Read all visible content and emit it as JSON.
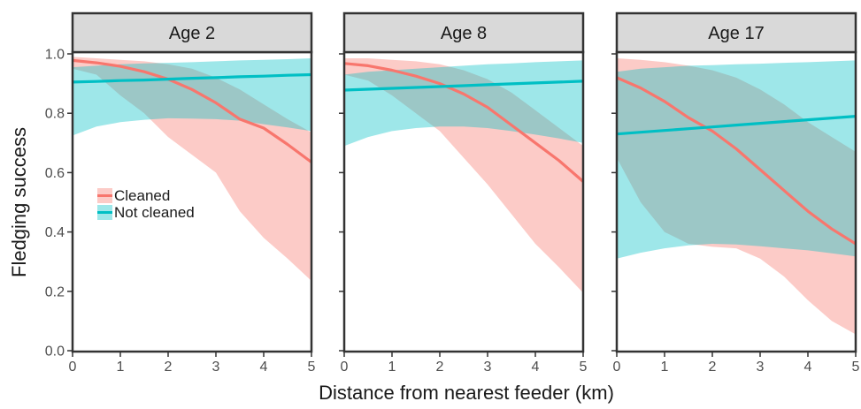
{
  "chart_data": {
    "type": "line",
    "xlabel": "Distance from nearest feeder (km)",
    "ylabel": "Fledging success",
    "xlim": [
      0,
      5
    ],
    "ylim": [
      0,
      1
    ],
    "x_ticks": [
      "0",
      "1",
      "2",
      "3",
      "4",
      "5"
    ],
    "y_ticks": [
      "0.0",
      "0.2",
      "0.4",
      "0.6",
      "0.8",
      "1.0"
    ],
    "legend": {
      "placement": "inside-left, first panel"
    },
    "colors": {
      "Cleaned": "#F8766D",
      "Not cleaned": "#00BFC4",
      "strip_bg": "#d9d9d9",
      "frame": "#333333"
    },
    "series_names": [
      "Cleaned",
      "Not cleaned"
    ],
    "panels": [
      {
        "title": "Age 2",
        "x": [
          0,
          0.5,
          1,
          1.5,
          2,
          2.5,
          3,
          3.5,
          4,
          4.5,
          5
        ],
        "series": [
          {
            "name": "Cleaned",
            "values": [
              0.978,
              0.97,
              0.958,
              0.94,
              0.915,
              0.88,
              0.835,
              0.78,
              0.75,
              0.695,
              0.635
            ],
            "lower": [
              0.95,
              0.93,
              0.86,
              0.8,
              0.72,
              0.66,
              0.6,
              0.47,
              0.38,
              0.31,
              0.235
            ],
            "upper": [
              0.99,
              0.985,
              0.98,
              0.975,
              0.965,
              0.95,
              0.92,
              0.88,
              0.83,
              0.78,
              0.735
            ]
          },
          {
            "name": "Not cleaned",
            "values": [
              0.905,
              0.907,
              0.91,
              0.912,
              0.915,
              0.918,
              0.92,
              0.923,
              0.925,
              0.928,
              0.93
            ],
            "lower": [
              0.725,
              0.755,
              0.77,
              0.778,
              0.783,
              0.782,
              0.78,
              0.775,
              0.763,
              0.752,
              0.74
            ],
            "upper": [
              0.955,
              0.96,
              0.965,
              0.968,
              0.97,
              0.972,
              0.975,
              0.978,
              0.98,
              0.982,
              0.985
            ]
          }
        ]
      },
      {
        "title": "Age 8",
        "x": [
          0,
          0.5,
          1,
          1.5,
          2,
          2.5,
          3,
          3.5,
          4,
          4.5,
          5
        ],
        "series": [
          {
            "name": "Cleaned",
            "values": [
              0.968,
              0.96,
              0.945,
              0.925,
              0.9,
              0.865,
              0.82,
              0.76,
              0.7,
              0.64,
              0.57
            ],
            "lower": [
              0.93,
              0.91,
              0.86,
              0.8,
              0.74,
              0.65,
              0.56,
              0.46,
              0.36,
              0.28,
              0.195
            ],
            "upper": [
              0.985,
              0.985,
              0.98,
              0.975,
              0.965,
              0.945,
              0.915,
              0.87,
              0.81,
              0.75,
              0.69
            ]
          },
          {
            "name": "Not cleaned",
            "values": [
              0.878,
              0.881,
              0.884,
              0.887,
              0.89,
              0.893,
              0.896,
              0.899,
              0.902,
              0.905,
              0.908
            ],
            "lower": [
              0.69,
              0.72,
              0.74,
              0.75,
              0.755,
              0.755,
              0.75,
              0.74,
              0.728,
              0.715,
              0.7
            ],
            "upper": [
              0.93,
              0.94,
              0.945,
              0.95,
              0.955,
              0.96,
              0.965,
              0.968,
              0.972,
              0.975,
              0.978
            ]
          }
        ]
      },
      {
        "title": "Age 17",
        "x": [
          0,
          0.5,
          1,
          1.5,
          2,
          2.5,
          3,
          3.5,
          4,
          4.5,
          5
        ],
        "series": [
          {
            "name": "Cleaned",
            "values": [
              0.92,
              0.885,
              0.84,
              0.785,
              0.74,
              0.68,
              0.61,
              0.54,
              0.47,
              0.41,
              0.36
            ],
            "lower": [
              0.65,
              0.5,
              0.4,
              0.36,
              0.35,
              0.345,
              0.31,
              0.25,
              0.17,
              0.1,
              0.055
            ],
            "upper": [
              0.985,
              0.98,
              0.972,
              0.96,
              0.945,
              0.92,
              0.88,
              0.83,
              0.77,
              0.72,
              0.67
            ]
          },
          {
            "name": "Not cleaned",
            "values": [
              0.73,
              0.736,
              0.742,
              0.748,
              0.754,
              0.76,
              0.766,
              0.772,
              0.778,
              0.784,
              0.79
            ],
            "lower": [
              0.31,
              0.33,
              0.345,
              0.355,
              0.36,
              0.358,
              0.352,
              0.345,
              0.338,
              0.328,
              0.318
            ],
            "upper": [
              0.94,
              0.95,
              0.955,
              0.96,
              0.962,
              0.965,
              0.967,
              0.97,
              0.972,
              0.975,
              0.978
            ]
          }
        ]
      }
    ]
  }
}
